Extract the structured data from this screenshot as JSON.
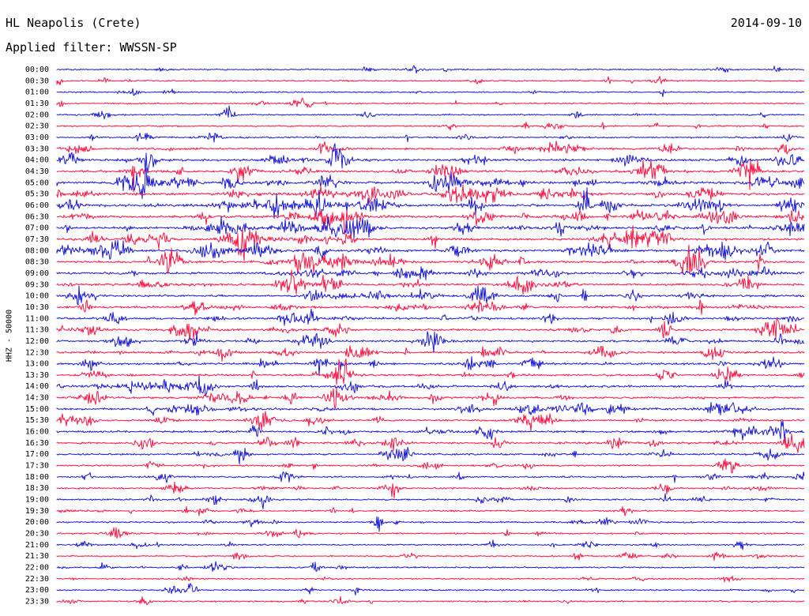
{
  "header": {
    "station": "HL Neapolis (Crete)",
    "date": "2014-09-10",
    "filter": "Applied filter: WWSSN-SP",
    "channel": "HHZ - 50000"
  },
  "colors": {
    "trace_a": "#1b1bd9",
    "trace_b": "#ff1744",
    "text": "#000000",
    "background": "#ffffff"
  },
  "chart_data": {
    "type": "line",
    "title": "HL Neapolis (Crete)",
    "subtitle": "Applied filter: WWSSN-SP",
    "ylabel": "HHZ - 50000",
    "date": "2014-09-10",
    "series_colors": [
      "#1b1bd9",
      "#ff1744"
    ],
    "row_labels": [
      "00:00",
      "00:30",
      "01:00",
      "01:30",
      "02:00",
      "02:30",
      "03:00",
      "03:30",
      "04:00",
      "04:30",
      "05:00",
      "05:30",
      "06:00",
      "06:30",
      "07:00",
      "07:30",
      "08:00",
      "08:30",
      "09:00",
      "09:30",
      "10:00",
      "10:30",
      "11:00",
      "11:30",
      "12:00",
      "12:30",
      "13:00",
      "13:30",
      "14:00",
      "14:30",
      "15:00",
      "15:30",
      "16:00",
      "16:30",
      "17:00",
      "17:30",
      "18:00",
      "18:30",
      "19:00",
      "19:30",
      "20:00",
      "20:30",
      "21:00",
      "21:30",
      "22:00",
      "22:30",
      "23:00",
      "23:30"
    ],
    "activity_level": [
      0.25,
      0.25,
      0.2,
      0.22,
      0.3,
      0.3,
      0.4,
      0.65,
      0.8,
      0.85,
      0.95,
      1.0,
      1.0,
      1.0,
      0.95,
      0.95,
      0.9,
      0.85,
      0.85,
      0.8,
      0.8,
      0.8,
      0.75,
      0.75,
      0.7,
      0.7,
      0.75,
      0.75,
      0.8,
      0.75,
      0.75,
      0.7,
      0.7,
      0.65,
      0.55,
      0.45,
      0.45,
      0.45,
      0.45,
      0.4,
      0.35,
      0.35,
      0.3,
      0.3,
      0.3,
      0.25,
      0.3,
      0.3
    ],
    "grid": false
  }
}
